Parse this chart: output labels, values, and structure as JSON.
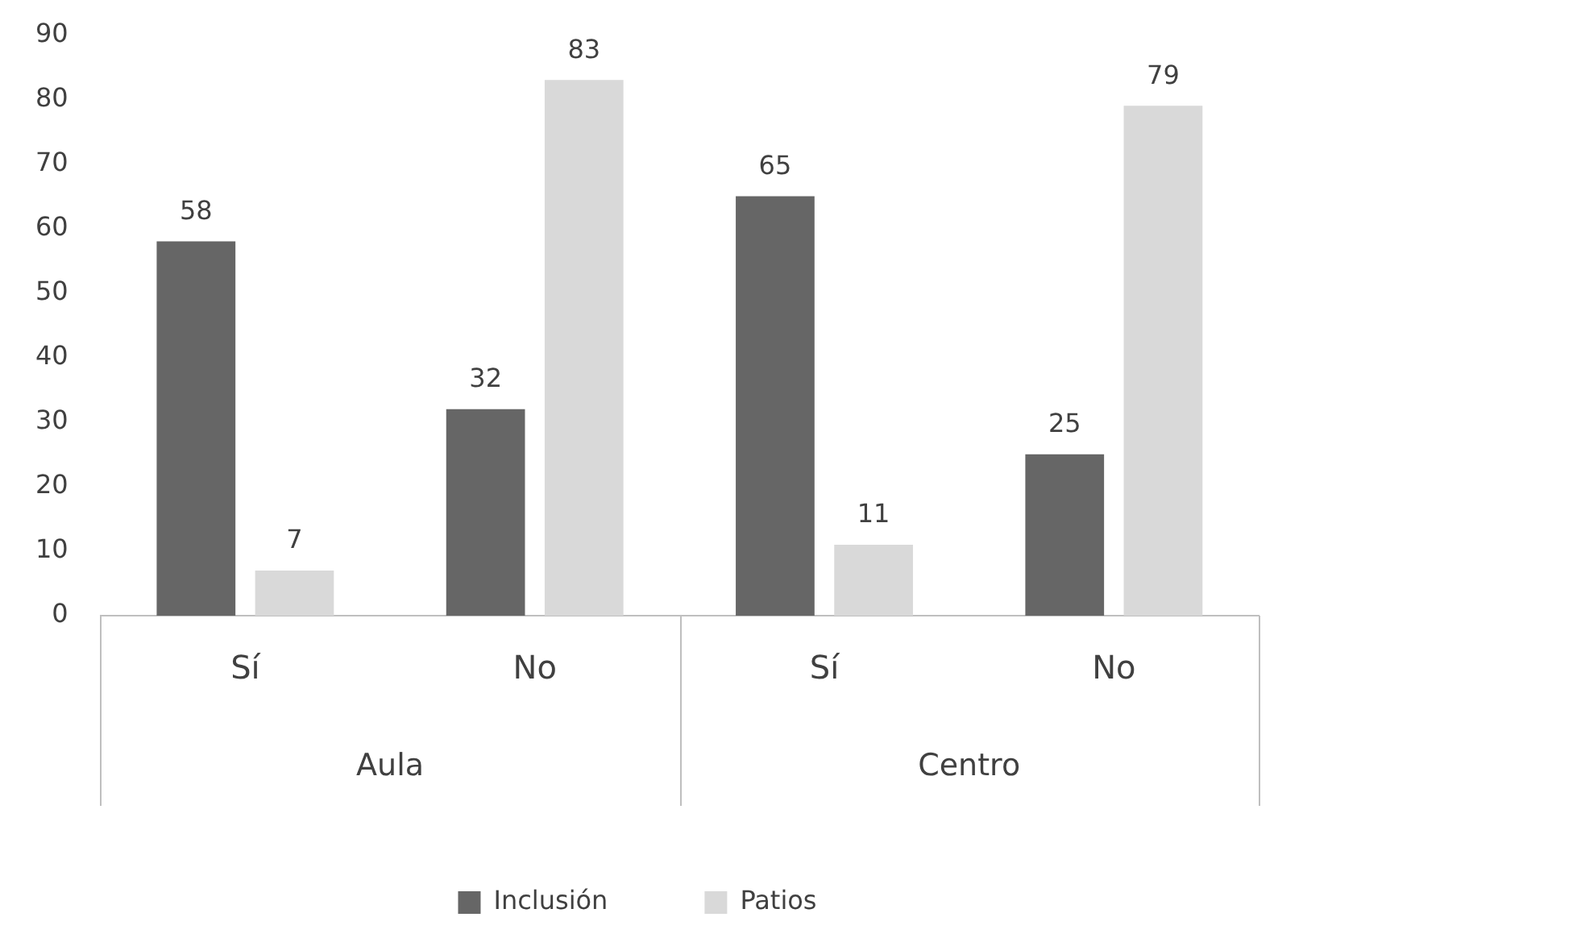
{
  "chart_data": {
    "type": "bar",
    "categories": [
      "Sí",
      "No",
      "Sí",
      "No"
    ],
    "series": [
      {
        "name": "Inclusión",
        "color": "#666666",
        "values": [
          58,
          32,
          65,
          25
        ]
      },
      {
        "name": "Patios",
        "color": "#d9d9d9",
        "values": [
          7,
          83,
          11,
          79
        ]
      }
    ],
    "annotations": [
      "Aula",
      "Centro"
    ],
    "ylim": [
      0,
      90
    ],
    "yticks": [
      0,
      10,
      20,
      30,
      40,
      50,
      60,
      70,
      80,
      90
    ],
    "data_labels": true,
    "legend": "bottom"
  }
}
